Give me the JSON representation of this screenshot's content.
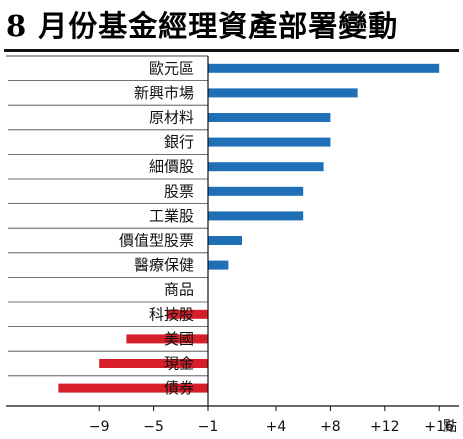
{
  "title": "8 月份基金經理資產部署變動",
  "chart_data": {
    "type": "bar",
    "orientation": "horizontal",
    "title": "8 月份基金經理資產部署變動",
    "xlabel": "點",
    "ylabel": "",
    "categories": [
      "歐元區",
      "新興市場",
      "原材料",
      "銀行",
      "細價股",
      "股票",
      "工業股",
      "價值型股票",
      "醫療保健",
      "商品",
      "科技股",
      "美國",
      "現金",
      "債券"
    ],
    "values": [
      17,
      11,
      9,
      9,
      8.5,
      7,
      7,
      2.5,
      1.5,
      0,
      -3,
      -6,
      -8,
      -11
    ],
    "xlim": [
      -9,
      16
    ],
    "xticks": [
      -9,
      -5,
      -1,
      4,
      8,
      12,
      16
    ],
    "xtick_labels": [
      "−9",
      "−5",
      "−1",
      "+4",
      "+8",
      "+12",
      "+16"
    ],
    "grid": false,
    "colors": {
      "positive": "#1f6fb6",
      "negative": "#d61f2a",
      "rule": "#444444"
    }
  }
}
